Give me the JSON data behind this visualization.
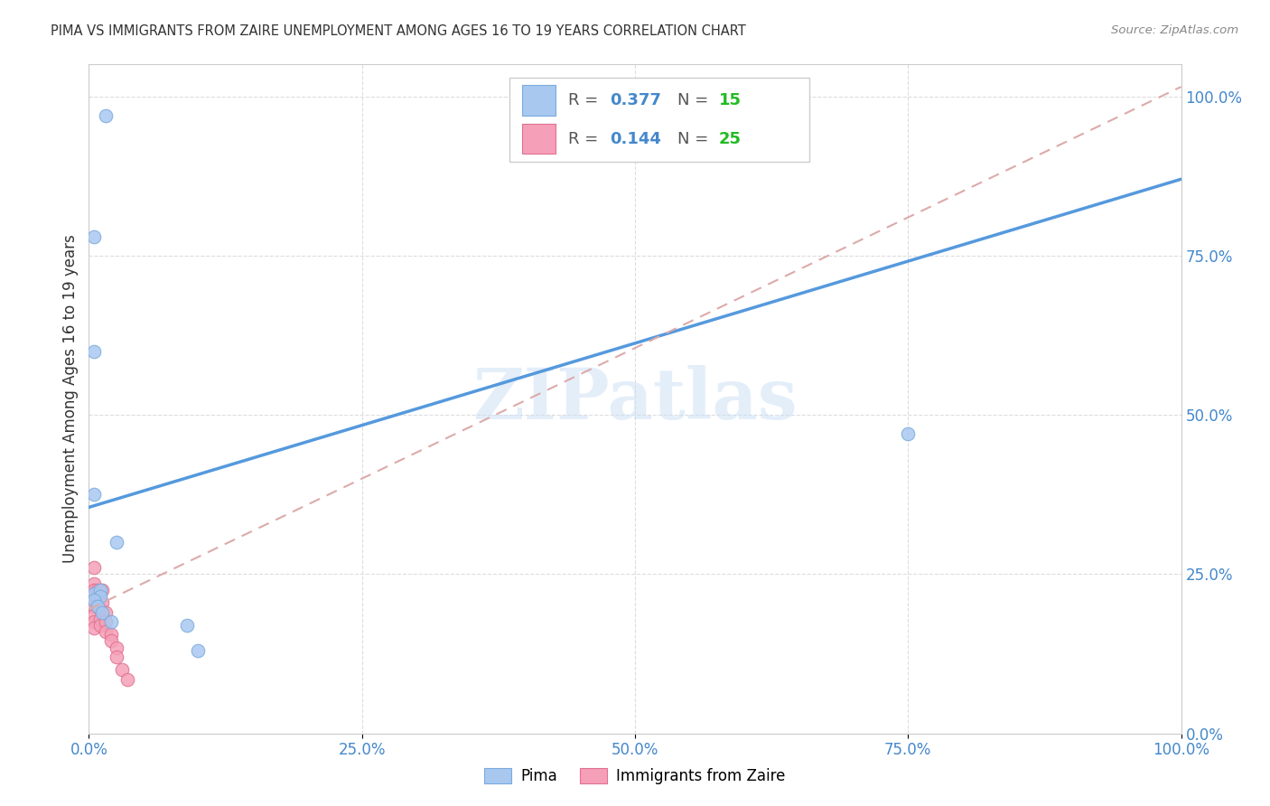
{
  "title": "PIMA VS IMMIGRANTS FROM ZAIRE UNEMPLOYMENT AMONG AGES 16 TO 19 YEARS CORRELATION CHART",
  "source": "Source: ZipAtlas.com",
  "ylabel": "Unemployment Among Ages 16 to 19 years",
  "pima_color": "#a8c8f0",
  "zaire_color": "#f5a0b8",
  "pima_edge_color": "#7aaadd",
  "zaire_edge_color": "#e07090",
  "pima_R": 0.377,
  "pima_N": 15,
  "zaire_R": 0.144,
  "zaire_N": 25,
  "legend_R_color": "#4488cc",
  "legend_N_color": "#22bb22",
  "pima_x": [
    0.015,
    0.005,
    0.005,
    0.005,
    0.005,
    0.01,
    0.01,
    0.005,
    0.008,
    0.012,
    0.02,
    0.09,
    0.1,
    0.75,
    0.025
  ],
  "pima_y": [
    0.97,
    0.78,
    0.6,
    0.375,
    0.22,
    0.225,
    0.215,
    0.21,
    0.2,
    0.19,
    0.175,
    0.17,
    0.13,
    0.47,
    0.3
  ],
  "zaire_x": [
    0.005,
    0.005,
    0.005,
    0.005,
    0.005,
    0.005,
    0.005,
    0.005,
    0.008,
    0.008,
    0.008,
    0.01,
    0.01,
    0.01,
    0.012,
    0.012,
    0.015,
    0.015,
    0.015,
    0.02,
    0.02,
    0.025,
    0.025,
    0.03,
    0.035
  ],
  "zaire_y": [
    0.26,
    0.235,
    0.225,
    0.21,
    0.2,
    0.185,
    0.175,
    0.165,
    0.225,
    0.215,
    0.2,
    0.195,
    0.18,
    0.17,
    0.225,
    0.205,
    0.19,
    0.175,
    0.16,
    0.155,
    0.145,
    0.135,
    0.12,
    0.1,
    0.085
  ],
  "pima_line_x": [
    0.0,
    1.0
  ],
  "pima_line_y": [
    0.355,
    0.87
  ],
  "zaire_line_x": [
    0.0,
    1.0
  ],
  "zaire_line_y": [
    0.195,
    1.015
  ],
  "watermark": "ZIPatlas",
  "marker_size": 110,
  "regression_line_color_pima": "#5599dd",
  "regression_line_color_zaire": "#ddaaaa",
  "background_color": "#ffffff",
  "grid_color": "#dddddd",
  "xlim": [
    0.0,
    1.0
  ],
  "ylim": [
    0.0,
    1.05
  ],
  "xtick_values": [
    0.0,
    0.25,
    0.5,
    0.75,
    1.0
  ],
  "ytick_values": [
    0.0,
    0.25,
    0.5,
    0.75,
    1.0
  ],
  "tick_label_color": "#4488cc",
  "tick_fontsize": 12
}
